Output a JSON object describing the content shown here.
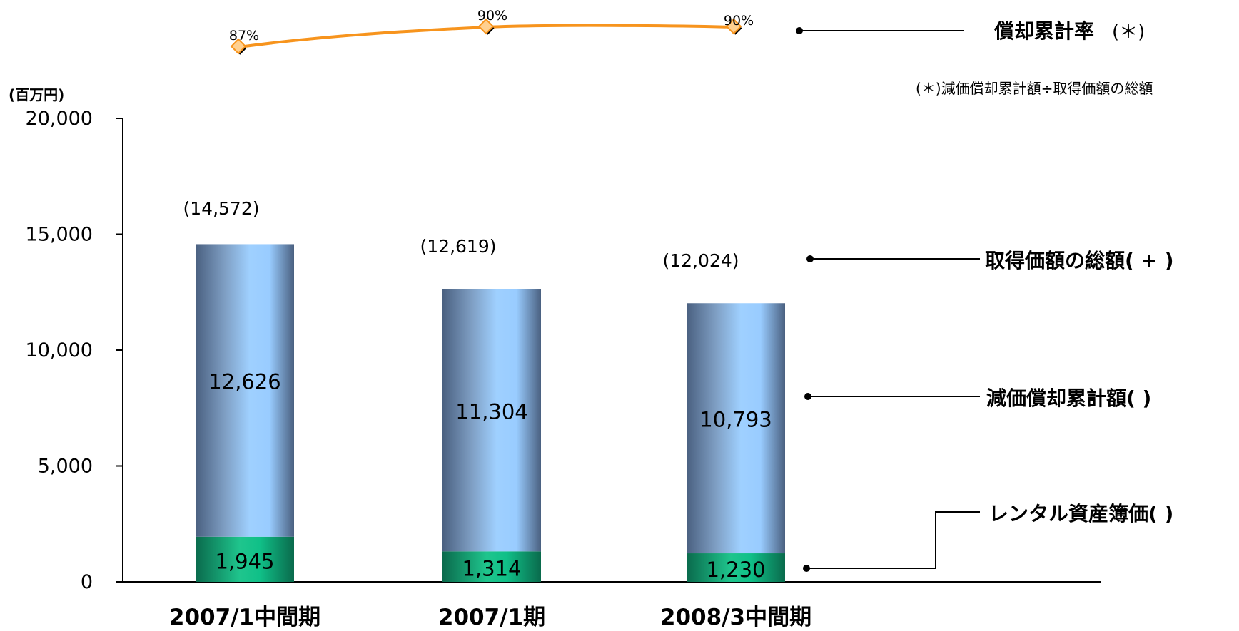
{
  "chart_data": {
    "type": "bar",
    "stacked": true,
    "unit_label": "(百万円)",
    "ylim": [
      0,
      20000
    ],
    "y_ticks": [
      "0",
      "5,000",
      "10,000",
      "15,000",
      "20,000"
    ],
    "categories": [
      "2007/1中間期",
      "2007/1期",
      "2008/3中間期"
    ],
    "series": [
      {
        "name": "レンタル資産簿価( )",
        "values": [
          1945,
          1314,
          1230
        ],
        "labels": [
          "1,945",
          "1,314",
          "1,230"
        ],
        "color": "#0a8a62"
      },
      {
        "name": "減価償却累計額( )",
        "values": [
          12626,
          11304,
          10793
        ],
        "labels": [
          "12,626",
          "11,304",
          "10,793"
        ],
        "color": "#99ccff"
      }
    ],
    "totals": {
      "name": "取得価額の総額( + )",
      "values": [
        14572,
        12619,
        12024
      ],
      "labels": [
        "(14,572)",
        "(12,619)",
        "(12,024)"
      ]
    },
    "rate": {
      "name": "償却累計率",
      "name_suffix": "(＊)",
      "values": [
        87,
        90,
        90
      ],
      "labels": [
        "87%",
        "90%",
        "90%"
      ],
      "color": "#f7941d"
    },
    "footnote": "(＊)減価償却累計額÷取得価額の総額",
    "grid": false
  }
}
